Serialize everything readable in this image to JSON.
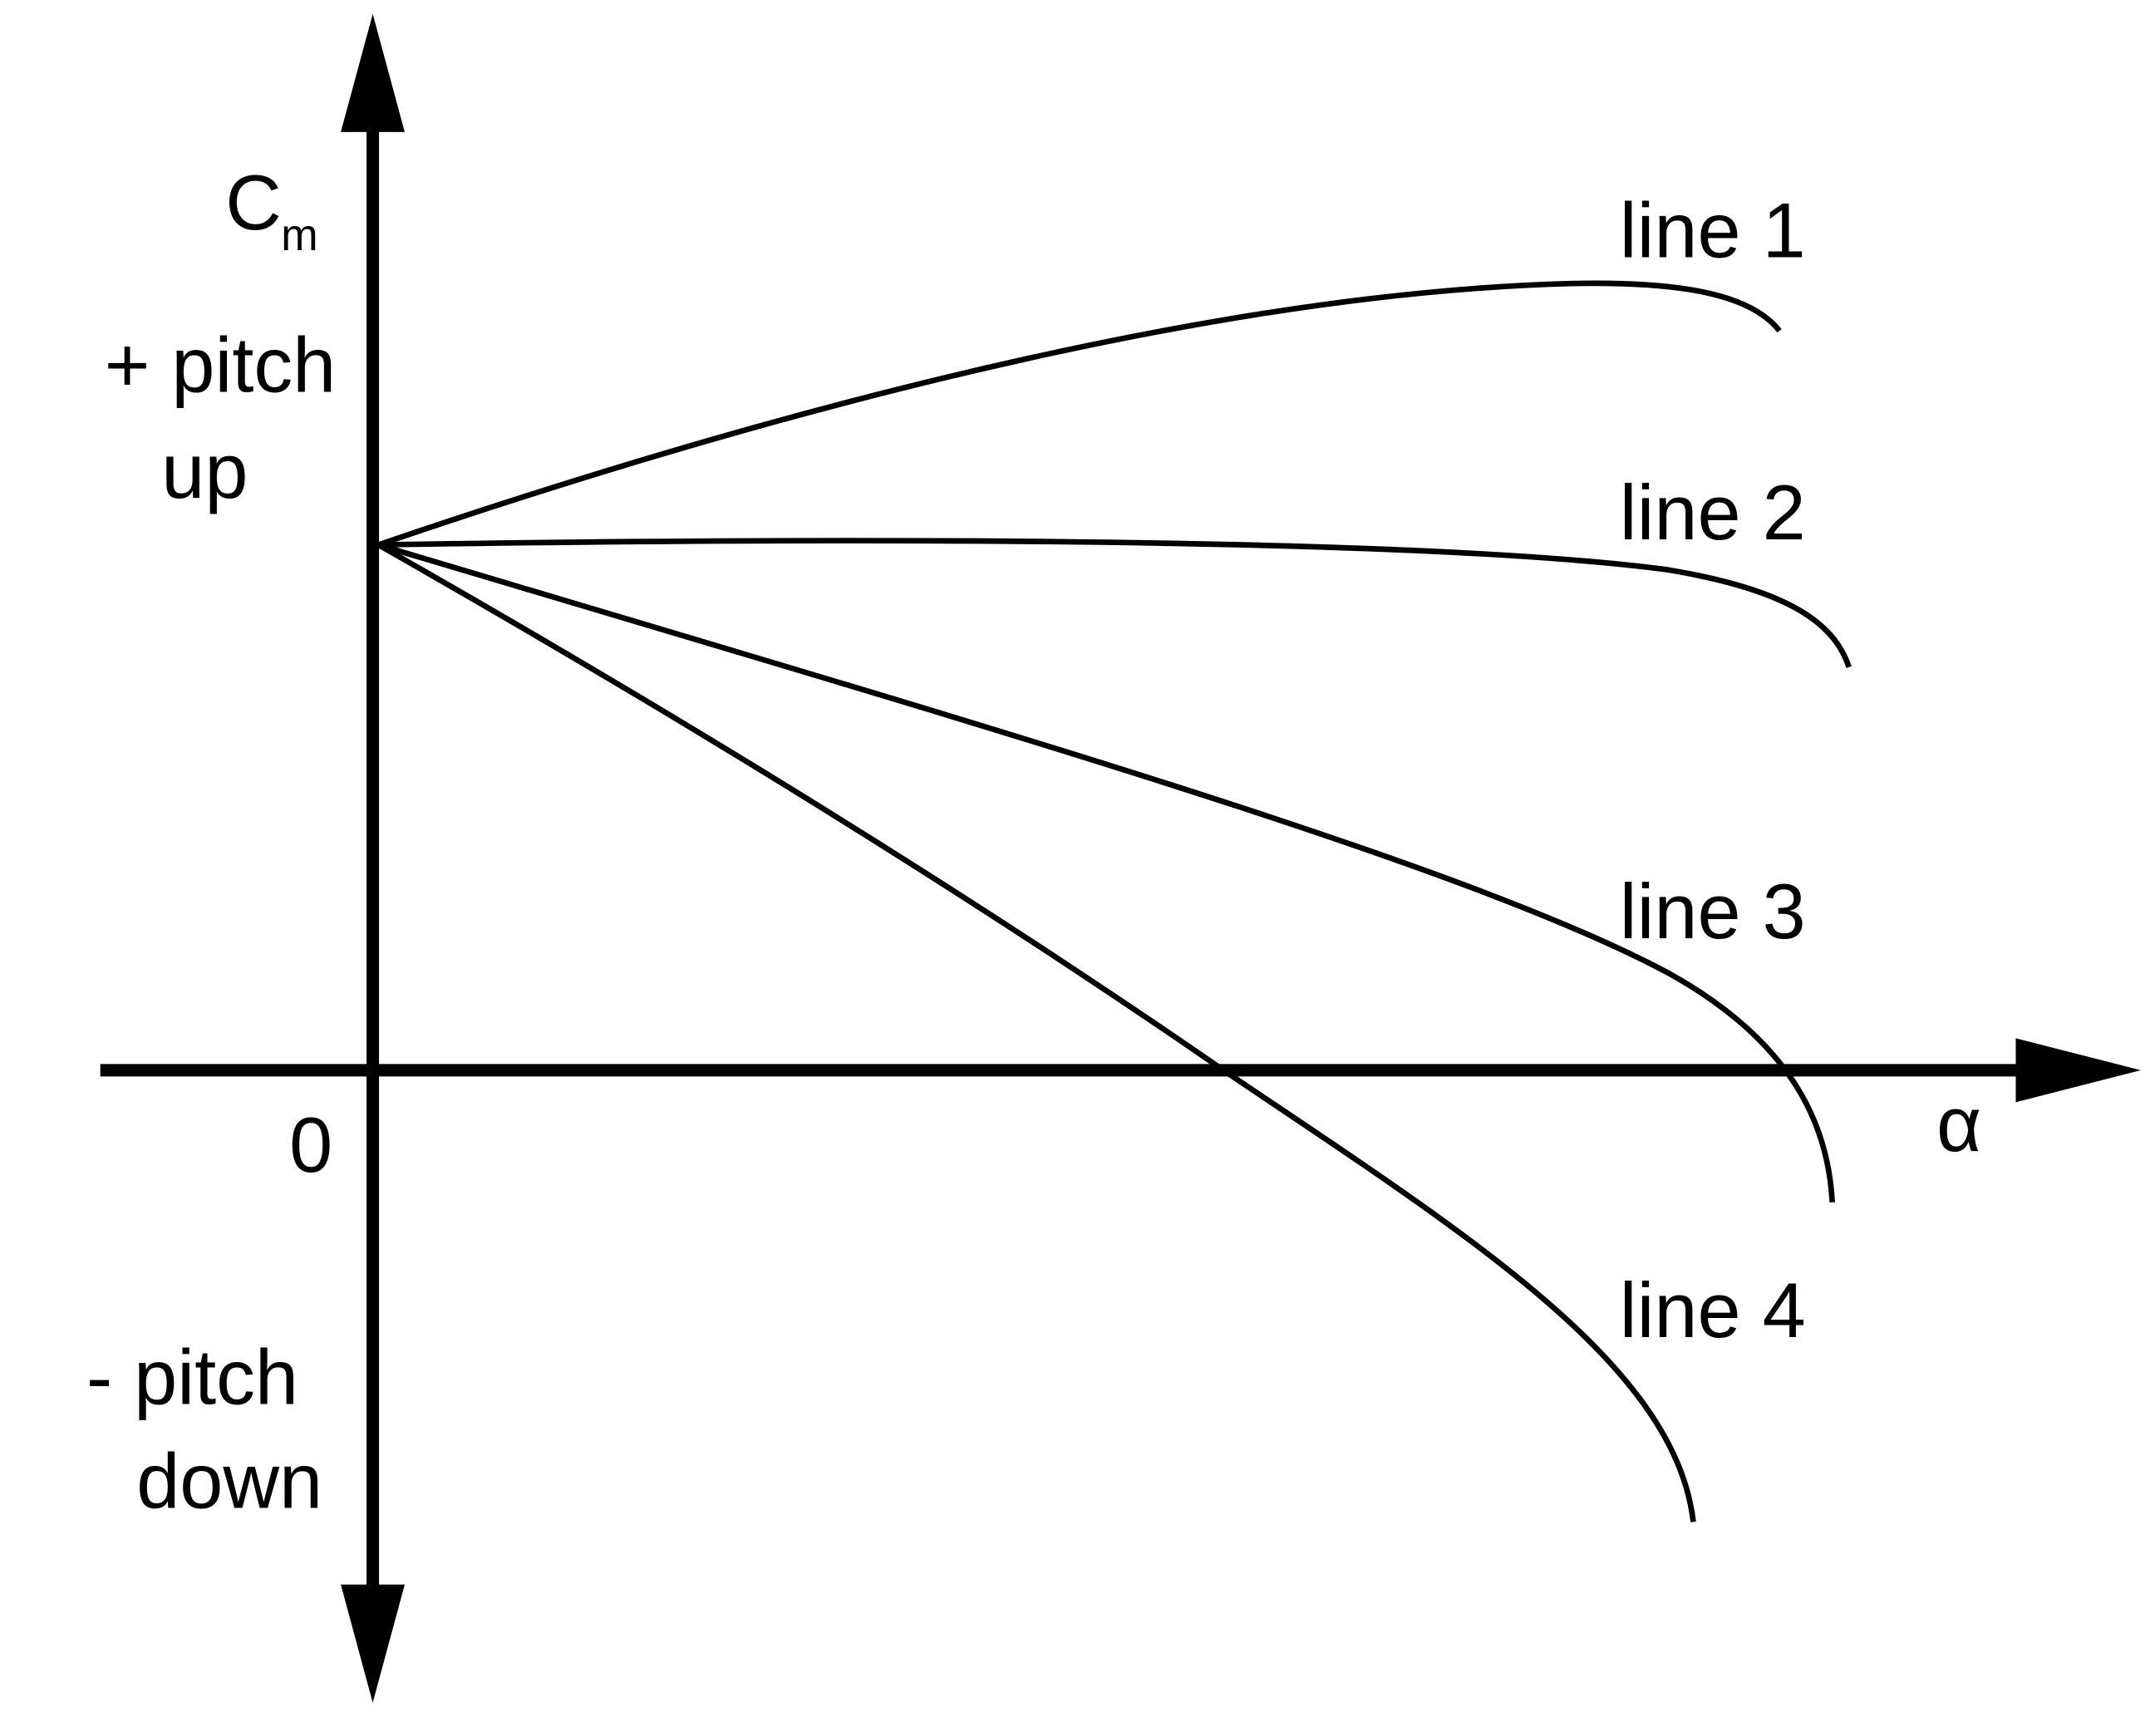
{
  "y_axis": {
    "label": "C",
    "label_subscript": "m",
    "positive": [
      "+ pitch",
      "up"
    ],
    "negative": [
      "- pitch",
      "down"
    ]
  },
  "origin": "0",
  "x_axis": {
    "label": "α"
  },
  "lines": [
    {
      "label": "line 1"
    },
    {
      "label": "line 2"
    },
    {
      "label": "line 3"
    },
    {
      "label": "line 4"
    }
  ]
}
